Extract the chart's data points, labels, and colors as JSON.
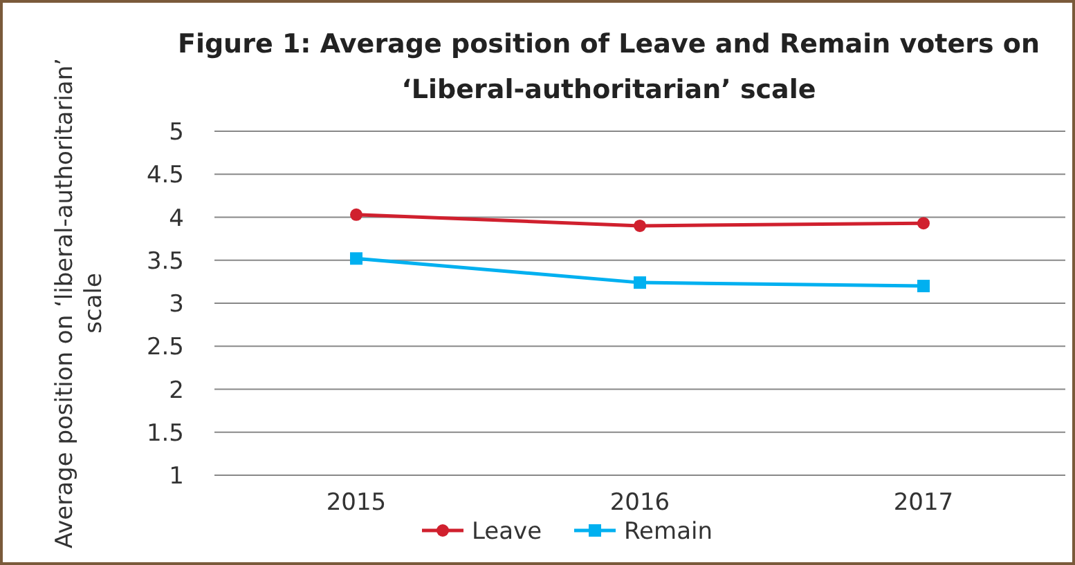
{
  "chart_data": {
    "type": "line",
    "title": "Figure 1: Average position of Leave and Remain voters on ‘Liberal-authoritarian’ scale",
    "ylabel": "Average position on ‘liberal-authoritarian’ scale",
    "categories": [
      "2015",
      "2016",
      "2017"
    ],
    "series": [
      {
        "name": "Leave",
        "color": "#d0202e",
        "values": [
          4.03,
          3.9,
          3.93
        ],
        "marker": "circle"
      },
      {
        "name": "Remain",
        "color": "#00b0f0",
        "values": [
          3.52,
          3.24,
          3.2
        ],
        "marker": "square"
      }
    ],
    "ylim": [
      1,
      5
    ],
    "yticks": [
      1,
      1.5,
      2,
      2.5,
      3,
      3.5,
      4,
      4.5,
      5
    ],
    "grid": "y",
    "legend": "bottom",
    "line_style": "solid"
  }
}
